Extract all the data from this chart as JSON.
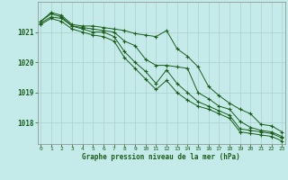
{
  "background_color": "#c5eaea",
  "grid_color": "#b0d4d4",
  "line_color": "#1a5e1a",
  "marker_color": "#1a5e1a",
  "xlabel": "Graphe pression niveau de la mer (hPa)",
  "xlabel_color": "#1a5e1a",
  "tick_color": "#1a5e1a",
  "axis_color": "#888888",
  "yticks": [
    1018,
    1019,
    1020,
    1021
  ],
  "xticks": [
    0,
    1,
    2,
    3,
    4,
    5,
    6,
    7,
    8,
    9,
    10,
    11,
    12,
    13,
    14,
    15,
    16,
    17,
    18,
    19,
    20,
    21,
    22,
    23
  ],
  "ylim": [
    1017.3,
    1022.0
  ],
  "xlim": [
    -0.3,
    23.3
  ],
  "series": [
    [
      1021.35,
      1021.65,
      1021.55,
      1021.25,
      1021.2,
      1021.2,
      1021.15,
      1021.1,
      1021.05,
      1020.95,
      1020.9,
      1020.85,
      1021.05,
      1020.45,
      1020.2,
      1019.85,
      1019.2,
      1018.9,
      1018.65,
      1018.45,
      1018.3,
      1017.95,
      1017.9,
      1017.7
    ],
    [
      1021.35,
      1021.6,
      1021.5,
      1021.2,
      1021.15,
      1021.1,
      1021.05,
      1021.0,
      1020.7,
      1020.55,
      1020.1,
      1019.9,
      1019.9,
      1019.85,
      1019.8,
      1019.0,
      1018.8,
      1018.55,
      1018.45,
      1018.05,
      1017.85,
      1017.75,
      1017.7,
      1017.55
    ],
    [
      1021.3,
      1021.5,
      1021.45,
      1021.2,
      1021.1,
      1021.0,
      1021.0,
      1020.85,
      1020.35,
      1020.0,
      1019.7,
      1019.3,
      1019.75,
      1019.3,
      1019.0,
      1018.7,
      1018.55,
      1018.4,
      1018.25,
      1017.8,
      1017.75,
      1017.7,
      1017.65,
      1017.5
    ],
    [
      1021.25,
      1021.45,
      1021.35,
      1021.1,
      1021.0,
      1020.9,
      1020.85,
      1020.7,
      1020.15,
      1019.8,
      1019.45,
      1019.1,
      1019.4,
      1019.0,
      1018.75,
      1018.55,
      1018.45,
      1018.3,
      1018.15,
      1017.7,
      1017.65,
      1017.6,
      1017.55,
      1017.4
    ]
  ]
}
